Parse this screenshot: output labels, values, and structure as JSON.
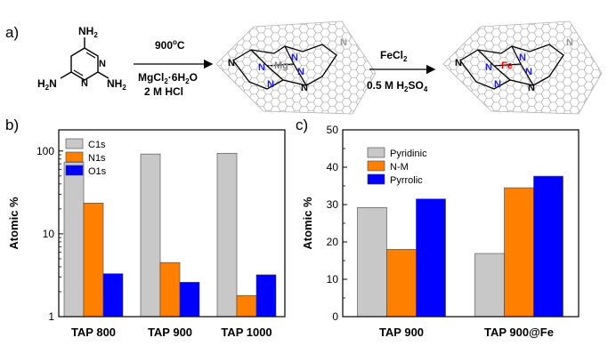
{
  "panels": {
    "a": {
      "label": "a)",
      "reactant": {
        "name": "2,4,6-triaminopyrimidine",
        "atoms": {
          "nh2_top": "NH",
          "nh2_left": "H",
          "nh2_right": "NH",
          "n": "N",
          "sub2": "2",
          "n_left": "N"
        }
      },
      "step1": {
        "temperature": "900",
        "degree": "o",
        "unit": "C",
        "reagent1": "MgCl",
        "reagent1_sub": "2",
        "reagent1_rest": "·6H",
        "reagent1_sub2": "2",
        "reagent1_end": "O",
        "reagent2": "2 M HCl"
      },
      "intermediate": {
        "metal": "Mg",
        "n": "N"
      },
      "step2": {
        "reagent1": "FeCl",
        "reagent1_sub": "2",
        "reagent2": "0.5 M H",
        "reagent2_sub": "2",
        "reagent2_rest": "SO",
        "reagent2_sub2": "4"
      },
      "product": {
        "metal": "Fe",
        "n": "N"
      }
    },
    "b": {
      "label": "b)"
    },
    "c": {
      "label": "c)"
    }
  },
  "chart_data": [
    {
      "id": "b",
      "type": "bar",
      "scale": "log",
      "categories": [
        "TAP 800",
        "TAP 900",
        "TAP 1000"
      ],
      "series": [
        {
          "name": "C1s",
          "color": "#c8c8c8",
          "values": [
            73,
            92,
            94
          ]
        },
        {
          "name": "N1s",
          "color": "#ff8000",
          "values": [
            23.5,
            4.5,
            1.8
          ]
        },
        {
          "name": "O1s",
          "color": "#0000ff",
          "values": [
            3.3,
            2.6,
            3.2
          ]
        }
      ],
      "ylabel": "Atomic %",
      "ylim": [
        1,
        180
      ],
      "yticks": [
        1,
        10,
        100
      ],
      "ytick_labels": [
        "1",
        "10",
        "100"
      ],
      "legend": "top-left"
    },
    {
      "id": "c",
      "type": "bar",
      "scale": "linear",
      "categories": [
        "TAP 900",
        "TAP 900@Fe"
      ],
      "series": [
        {
          "name": "Pyridinic",
          "color": "#c8c8c8",
          "values": [
            29.2,
            16.9
          ]
        },
        {
          "name": "N-M",
          "color": "#ff8000",
          "values": [
            18.0,
            34.5
          ]
        },
        {
          "name": "Pyrrolic",
          "color": "#0000ff",
          "values": [
            31.5,
            37.6
          ]
        }
      ],
      "ylabel": "Atomic %",
      "ylim": [
        0,
        50
      ],
      "yticks": [
        0,
        10,
        20,
        30,
        40,
        50
      ],
      "ytick_labels": [
        "0",
        "10",
        "20",
        "30",
        "40",
        "50"
      ],
      "legend": "top-left"
    }
  ]
}
